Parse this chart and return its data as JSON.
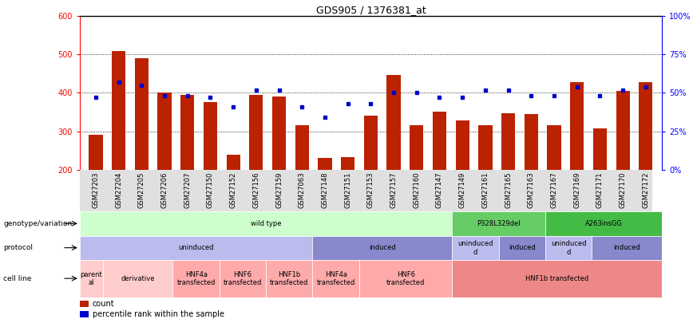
{
  "title": "GDS905 / 1376381_at",
  "samples": [
    "GSM27203",
    "GSM27204",
    "GSM27205",
    "GSM27206",
    "GSM27207",
    "GSM27150",
    "GSM27152",
    "GSM27156",
    "GSM27159",
    "GSM27063",
    "GSM27148",
    "GSM27151",
    "GSM27153",
    "GSM27157",
    "GSM27160",
    "GSM27147",
    "GSM27149",
    "GSM27161",
    "GSM27165",
    "GSM27163",
    "GSM27167",
    "GSM27169",
    "GSM27171",
    "GSM27170",
    "GSM27172"
  ],
  "counts": [
    290,
    510,
    490,
    400,
    395,
    375,
    238,
    395,
    390,
    315,
    230,
    233,
    340,
    447,
    315,
    350,
    328,
    315,
    347,
    345,
    315,
    427,
    307,
    405,
    427
  ],
  "percentiles": [
    47,
    57,
    55,
    48,
    48,
    47,
    41,
    52,
    52,
    41,
    34,
    43,
    43,
    50,
    50,
    47,
    47,
    52,
    52,
    48,
    48,
    54,
    48,
    52,
    54
  ],
  "bar_color": "#bb2200",
  "dot_color": "#0000cc",
  "ylim_left": [
    200,
    600
  ],
  "ylim_right": [
    0,
    100
  ],
  "yticks_left": [
    200,
    300,
    400,
    500,
    600
  ],
  "yticks_right": [
    0,
    25,
    50,
    75,
    100
  ],
  "dotted_lines": [
    300,
    400,
    500
  ],
  "genotype_row": {
    "label": "genotype/variation",
    "segments": [
      {
        "text": "wild type",
        "start": 0,
        "end": 16,
        "color": "#ccffcc"
      },
      {
        "text": "P328L329del",
        "start": 16,
        "end": 20,
        "color": "#66cc66"
      },
      {
        "text": "A263insGG",
        "start": 20,
        "end": 25,
        "color": "#44bb44"
      }
    ]
  },
  "protocol_row": {
    "label": "protocol",
    "segments": [
      {
        "text": "uninduced",
        "start": 0,
        "end": 10,
        "color": "#bbbbee"
      },
      {
        "text": "induced",
        "start": 10,
        "end": 16,
        "color": "#8888cc"
      },
      {
        "text": "uninduced\nd",
        "start": 16,
        "end": 18,
        "color": "#bbbbee"
      },
      {
        "text": "induced",
        "start": 18,
        "end": 20,
        "color": "#8888cc"
      },
      {
        "text": "uninduced\nd",
        "start": 20,
        "end": 22,
        "color": "#bbbbee"
      },
      {
        "text": "induced",
        "start": 22,
        "end": 25,
        "color": "#8888cc"
      }
    ]
  },
  "cellline_row": {
    "label": "cell line",
    "segments": [
      {
        "text": "parent\nal",
        "start": 0,
        "end": 1,
        "color": "#ffcccc"
      },
      {
        "text": "derivative",
        "start": 1,
        "end": 4,
        "color": "#ffcccc"
      },
      {
        "text": "HNF4a\ntransfected",
        "start": 4,
        "end": 6,
        "color": "#ffaaaa"
      },
      {
        "text": "HNF6\ntransfected",
        "start": 6,
        "end": 8,
        "color": "#ffaaaa"
      },
      {
        "text": "HNF1b\ntransfected",
        "start": 8,
        "end": 10,
        "color": "#ffaaaa"
      },
      {
        "text": "HNF4a\ntransfected",
        "start": 10,
        "end": 12,
        "color": "#ffaaaa"
      },
      {
        "text": "HNF6\ntransfected",
        "start": 12,
        "end": 16,
        "color": "#ffaaaa"
      },
      {
        "text": "HNF1b transfected",
        "start": 16,
        "end": 25,
        "color": "#ee8888"
      }
    ]
  }
}
